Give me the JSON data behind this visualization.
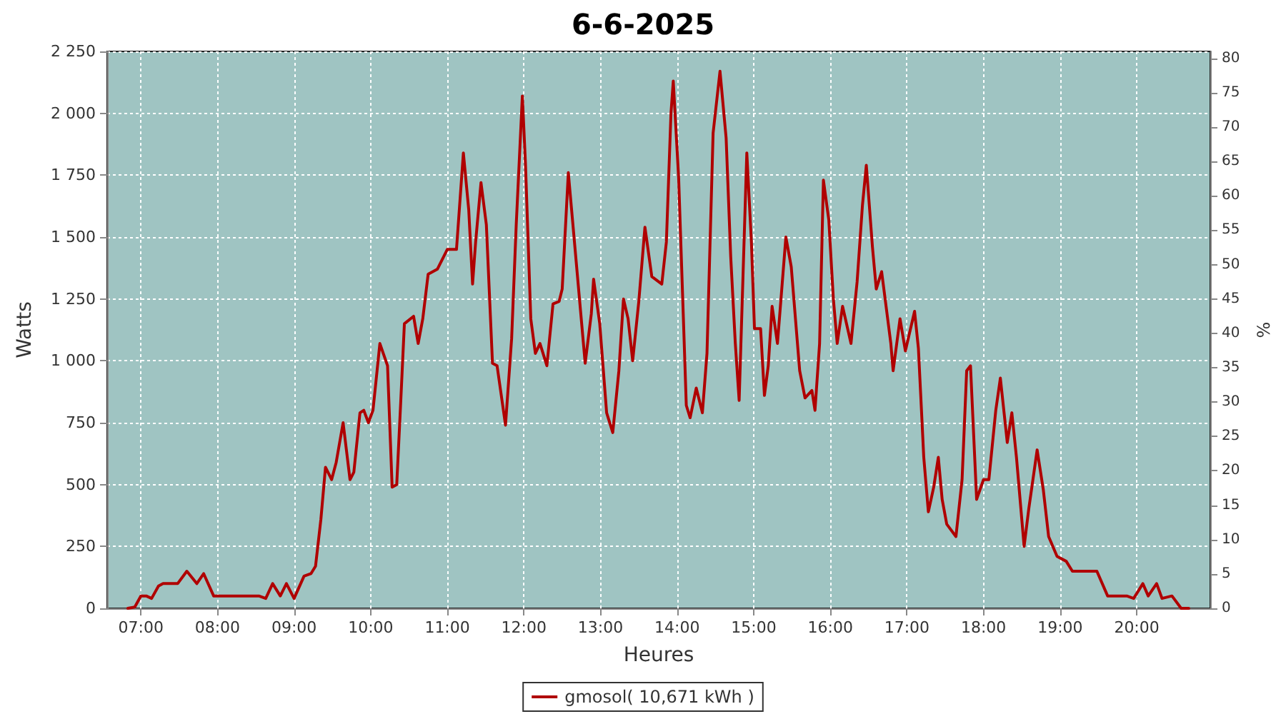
{
  "chart_data": {
    "type": "line",
    "title": "6-6-2025",
    "xlabel": "Heures",
    "ylabel": "Watts",
    "y2label": "%",
    "xlim": [
      6.56,
      20.96
    ],
    "xticks": [
      {
        "value": 7,
        "label": "07:00"
      },
      {
        "value": 8,
        "label": "08:00"
      },
      {
        "value": 9,
        "label": "09:00"
      },
      {
        "value": 10,
        "label": "10:00"
      },
      {
        "value": 11,
        "label": "11:00"
      },
      {
        "value": 12,
        "label": "12:00"
      },
      {
        "value": 13,
        "label": "13:00"
      },
      {
        "value": 14,
        "label": "14:00"
      },
      {
        "value": 15,
        "label": "15:00"
      },
      {
        "value": 16,
        "label": "16:00"
      },
      {
        "value": 17,
        "label": "17:00"
      },
      {
        "value": 18,
        "label": "18:00"
      },
      {
        "value": 19,
        "label": "19:00"
      },
      {
        "value": 20,
        "label": "20:00"
      }
    ],
    "ylim": [
      0,
      2250
    ],
    "yticks": [
      0,
      250,
      500,
      750,
      {
        "value": 1000,
        "label": "1 000"
      },
      {
        "value": 1250,
        "label": "1 250"
      },
      {
        "value": 1500,
        "label": "1 500"
      },
      {
        "value": 1750,
        "label": "1 750"
      },
      {
        "value": 2000,
        "label": "2 000"
      },
      {
        "value": 2250,
        "label": "2 250"
      }
    ],
    "y2lim": [
      0,
      81
    ],
    "y2ticks": [
      0,
      5,
      10,
      15,
      20,
      25,
      30,
      35,
      40,
      45,
      50,
      55,
      60,
      65,
      70,
      75,
      80
    ],
    "grid": true,
    "legend": "bottom",
    "marker": "none",
    "line_style": "solid",
    "series": [
      {
        "name": "gmosol( 10,671 kWh )",
        "color": "#b00000",
        "x": [
          6.83,
          6.92,
          7.0,
          7.07,
          7.14,
          7.23,
          7.29,
          7.48,
          7.6,
          7.73,
          7.82,
          7.95,
          7.98,
          8.54,
          8.63,
          8.72,
          8.82,
          8.9,
          9.0,
          9.13,
          9.22,
          9.28,
          9.35,
          9.41,
          9.49,
          9.55,
          9.64,
          9.73,
          9.78,
          9.86,
          9.91,
          9.97,
          10.03,
          10.12,
          10.22,
          10.28,
          10.34,
          10.39,
          10.44,
          10.56,
          10.62,
          10.68,
          10.75,
          10.87,
          11.0,
          11.12,
          11.21,
          11.28,
          11.33,
          11.37,
          11.44,
          11.51,
          11.59,
          11.65,
          11.76,
          11.84,
          11.9,
          11.98,
          12.02,
          12.09,
          12.15,
          12.21,
          12.3,
          12.38,
          12.46,
          12.5,
          12.58,
          12.74,
          12.8,
          12.88,
          12.91,
          12.99,
          13.08,
          13.16,
          13.24,
          13.3,
          13.36,
          13.42,
          13.5,
          13.58,
          13.67,
          13.8,
          13.86,
          13.92,
          13.95,
          14.02,
          14.08,
          14.12,
          14.17,
          14.25,
          14.33,
          14.39,
          14.47,
          14.56,
          14.64,
          14.7,
          14.76,
          14.81,
          14.86,
          14.91,
          14.97,
          15.01,
          15.09,
          15.14,
          15.19,
          15.24,
          15.31,
          15.42,
          15.49,
          15.6,
          15.67,
          15.76,
          15.8,
          15.86,
          15.91,
          15.98,
          16.04,
          16.09,
          16.16,
          16.27,
          16.35,
          16.42,
          16.47,
          16.55,
          16.6,
          16.67,
          16.79,
          16.82,
          16.91,
          16.98,
          17.1,
          17.15,
          17.19,
          17.22,
          17.28,
          17.35,
          17.41,
          17.46,
          17.52,
          17.64,
          17.72,
          17.78,
          17.83,
          17.91,
          18.0,
          18.07,
          18.16,
          18.22,
          18.31,
          18.37,
          18.43,
          18.53,
          18.59,
          18.7,
          18.78,
          18.85,
          18.96,
          19.08,
          19.16,
          19.48,
          19.62,
          19.87,
          19.96,
          20.08,
          20.15,
          20.26,
          20.33,
          20.46,
          20.58,
          20.68
        ],
        "values": [
          0,
          5,
          50,
          50,
          40,
          90,
          100,
          100,
          150,
          100,
          140,
          50,
          50,
          50,
          40,
          100,
          50,
          100,
          40,
          130,
          140,
          170,
          360,
          570,
          520,
          590,
          750,
          520,
          550,
          790,
          800,
          750,
          800,
          1070,
          980,
          490,
          500,
          820,
          1150,
          1180,
          1070,
          1170,
          1350,
          1370,
          1450,
          1450,
          1840,
          1610,
          1310,
          1480,
          1720,
          1550,
          990,
          980,
          740,
          1090,
          1550,
          2070,
          1800,
          1170,
          1030,
          1070,
          980,
          1230,
          1240,
          1290,
          1760,
          1200,
          990,
          1190,
          1330,
          1150,
          790,
          710,
          960,
          1250,
          1170,
          1000,
          1240,
          1540,
          1340,
          1310,
          1480,
          2000,
          2130,
          1740,
          1190,
          820,
          770,
          890,
          790,
          1030,
          1920,
          2170,
          1900,
          1420,
          1070,
          840,
          1340,
          1840,
          1480,
          1130,
          1130,
          860,
          980,
          1220,
          1070,
          1500,
          1380,
          960,
          850,
          880,
          800,
          1070,
          1730,
          1570,
          1250,
          1070,
          1220,
          1070,
          1320,
          1630,
          1790,
          1460,
          1290,
          1360,
          1070,
          960,
          1170,
          1040,
          1200,
          1050,
          800,
          610,
          390,
          490,
          610,
          440,
          340,
          290,
          520,
          960,
          980,
          440,
          520,
          520,
          800,
          930,
          670,
          790,
          610,
          250,
          400,
          640,
          480,
          290,
          210,
          190,
          150,
          150,
          50,
          50,
          40,
          100,
          50,
          100,
          40,
          50,
          0,
          0
        ]
      }
    ]
  }
}
